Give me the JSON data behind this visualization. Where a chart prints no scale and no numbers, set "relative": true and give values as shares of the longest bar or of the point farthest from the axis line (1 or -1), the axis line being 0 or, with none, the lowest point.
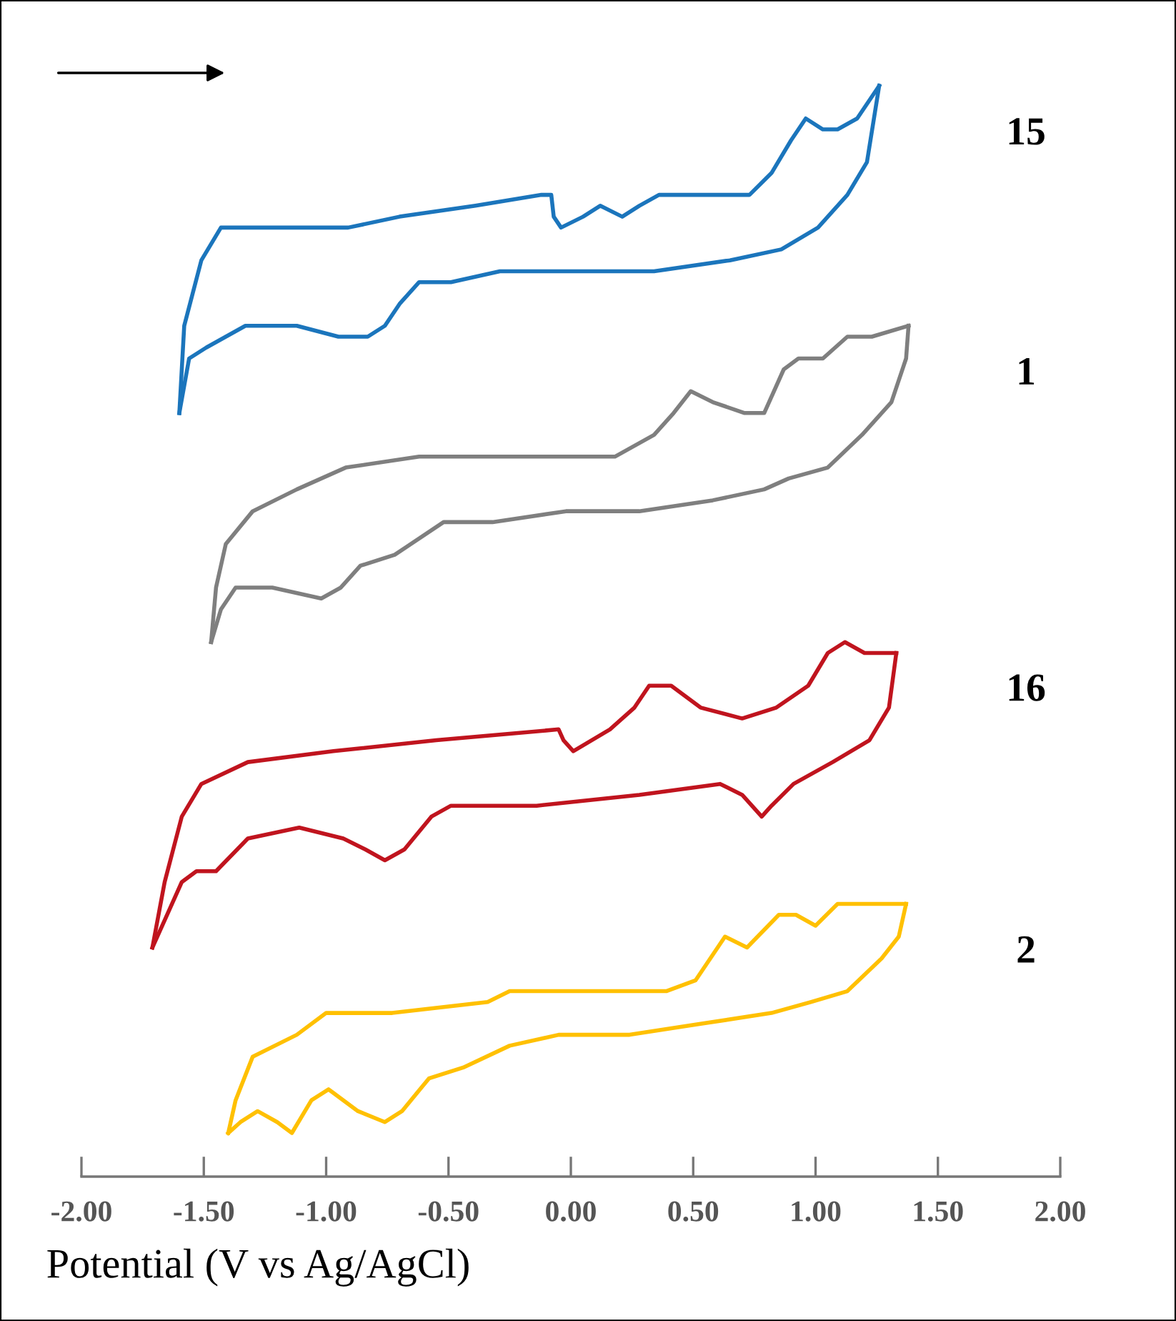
{
  "chart_data": {
    "type": "line",
    "relative": true,
    "xlabel": "Potential (V vs Ag/AgCl)",
    "xlim": [
      -2,
      2
    ],
    "xticks": [
      {
        "value": -2,
        "label": "-2.00"
      },
      {
        "value": -1.5,
        "label": "-1.50"
      },
      {
        "value": -1,
        "label": "-1.00"
      },
      {
        "value": -0.5,
        "label": "-0.50"
      },
      {
        "value": 0,
        "label": "0.00"
      },
      {
        "value": 0.5,
        "label": "0.50"
      },
      {
        "value": 1,
        "label": "1.00"
      },
      {
        "value": 1.5,
        "label": "1.50"
      },
      {
        "value": 2,
        "label": "2.00"
      }
    ],
    "tick_labels": "x",
    "grid": false,
    "legend": false,
    "marker": "none",
    "line_style": "solid",
    "series": [
      {
        "name": "15",
        "color": "#1b75bc",
        "x": [
          -1.6,
          -1.58,
          -1.51,
          -1.43,
          -1.33,
          -1.12,
          -0.91,
          -0.7,
          -0.39,
          -0.12,
          -0.08,
          -0.07,
          -0.04,
          0.05,
          0.12,
          0.21,
          0.28,
          0.36,
          0.55,
          0.73,
          0.82,
          0.9,
          0.96,
          1.03,
          1.09,
          1.17,
          1.26
        ],
        "values": [
          0.7,
          0.78,
          0.84,
          0.87,
          0.87,
          0.87,
          0.87,
          0.88,
          0.89,
          0.9,
          0.9,
          0.88,
          0.87,
          0.88,
          0.89,
          0.88,
          0.89,
          0.9,
          0.9,
          0.9,
          0.92,
          0.95,
          0.97,
          0.96,
          0.96,
          0.97,
          1.0
        ]
      },
      {
        "color": "#1b75bc",
        "x": [
          1.26,
          1.21,
          1.13,
          1.01,
          0.86,
          0.65,
          0.34,
          0.03,
          -0.29,
          -0.49,
          -0.62,
          -0.7,
          -0.76,
          -0.83,
          -0.95,
          -1.12,
          -1.33,
          -1.49,
          -1.56,
          -1.6
        ],
        "values": [
          1.0,
          0.93,
          0.9,
          0.87,
          0.85,
          0.84,
          0.83,
          0.83,
          0.83,
          0.82,
          0.82,
          0.8,
          0.78,
          0.77,
          0.77,
          0.78,
          0.78,
          0.76,
          0.75,
          0.7
        ]
      },
      {
        "name": "1",
        "color": "#7f7f7f",
        "x": [
          -1.47,
          -1.45,
          -1.41,
          -1.3,
          -1.12,
          -0.92,
          -0.62,
          -0.22,
          0.18,
          0.34,
          0.42,
          0.49,
          0.58,
          0.71,
          0.79,
          0.87,
          0.93,
          1.03,
          1.13,
          1.23,
          1.38
        ],
        "values": [
          0.49,
          0.54,
          0.58,
          0.61,
          0.63,
          0.65,
          0.66,
          0.66,
          0.66,
          0.68,
          0.7,
          0.72,
          0.71,
          0.7,
          0.7,
          0.74,
          0.75,
          0.75,
          0.77,
          0.77,
          0.78
        ]
      },
      {
        "color": "#7f7f7f",
        "x": [
          1.38,
          1.37,
          1.31,
          1.19,
          1.05,
          0.89,
          0.79,
          0.58,
          0.28,
          -0.02,
          -0.32,
          -0.52,
          -0.72,
          -0.86,
          -0.94,
          -1.02,
          -1.22,
          -1.37,
          -1.43,
          -1.47
        ],
        "values": [
          0.78,
          0.75,
          0.71,
          0.68,
          0.65,
          0.64,
          0.63,
          0.62,
          0.61,
          0.61,
          0.6,
          0.6,
          0.57,
          0.56,
          0.54,
          0.53,
          0.54,
          0.54,
          0.52,
          0.49
        ]
      },
      {
        "name": "16",
        "color": "#c0141e",
        "x": [
          -1.71,
          -1.66,
          -1.59,
          -1.51,
          -1.32,
          -0.97,
          -0.55,
          -0.05,
          -0.03,
          0.01,
          0.16,
          0.26,
          0.32,
          0.41,
          0.53,
          0.7,
          0.84,
          0.97,
          1.05,
          1.12,
          1.2,
          1.26,
          1.33
        ],
        "values": [
          0.21,
          0.27,
          0.33,
          0.36,
          0.38,
          0.39,
          0.4,
          0.41,
          0.4,
          0.39,
          0.41,
          0.43,
          0.45,
          0.45,
          0.43,
          0.42,
          0.43,
          0.45,
          0.48,
          0.49,
          0.48,
          0.48,
          0.48
        ]
      },
      {
        "color": "#c0141e",
        "x": [
          1.33,
          1.3,
          1.22,
          1.07,
          0.91,
          0.82,
          0.78,
          0.74,
          0.7,
          0.61,
          0.28,
          -0.14,
          -0.49,
          -0.57,
          -0.68,
          -0.76,
          -0.84,
          -0.93,
          -1.11,
          -1.32,
          -1.45,
          -1.53,
          -1.59,
          -1.71
        ],
        "values": [
          0.48,
          0.43,
          0.4,
          0.38,
          0.36,
          0.34,
          0.33,
          0.34,
          0.35,
          0.36,
          0.35,
          0.34,
          0.34,
          0.33,
          0.3,
          0.29,
          0.3,
          0.31,
          0.32,
          0.31,
          0.28,
          0.28,
          0.27,
          0.21
        ]
      },
      {
        "name": "2",
        "color": "#ffc000",
        "x": [
          -1.4,
          -1.37,
          -1.3,
          -1.12,
          -1.0,
          -0.73,
          -0.34,
          -0.25,
          0.04,
          0.39,
          0.51,
          0.57,
          0.63,
          0.72,
          0.85,
          0.92,
          1.0,
          1.09,
          1.21,
          1.29,
          1.37
        ],
        "values": [
          0.04,
          0.07,
          0.11,
          0.13,
          0.15,
          0.15,
          0.16,
          0.17,
          0.17,
          0.17,
          0.18,
          0.2,
          0.22,
          0.21,
          0.24,
          0.24,
          0.23,
          0.25,
          0.25,
          0.25,
          0.25
        ]
      },
      {
        "color": "#ffc000",
        "x": [
          1.37,
          1.34,
          1.27,
          1.13,
          0.98,
          0.82,
          0.53,
          0.24,
          -0.05,
          -0.25,
          -0.44,
          -0.58,
          -0.69,
          -0.76,
          -0.87,
          -0.99,
          -1.06,
          -1.14,
          -1.2,
          -1.28,
          -1.35,
          -1.4
        ],
        "values": [
          0.25,
          0.22,
          0.2,
          0.17,
          0.16,
          0.15,
          0.14,
          0.13,
          0.13,
          0.12,
          0.1,
          0.09,
          0.06,
          0.05,
          0.06,
          0.08,
          0.07,
          0.04,
          0.05,
          0.06,
          0.05,
          0.04
        ]
      }
    ]
  }
}
